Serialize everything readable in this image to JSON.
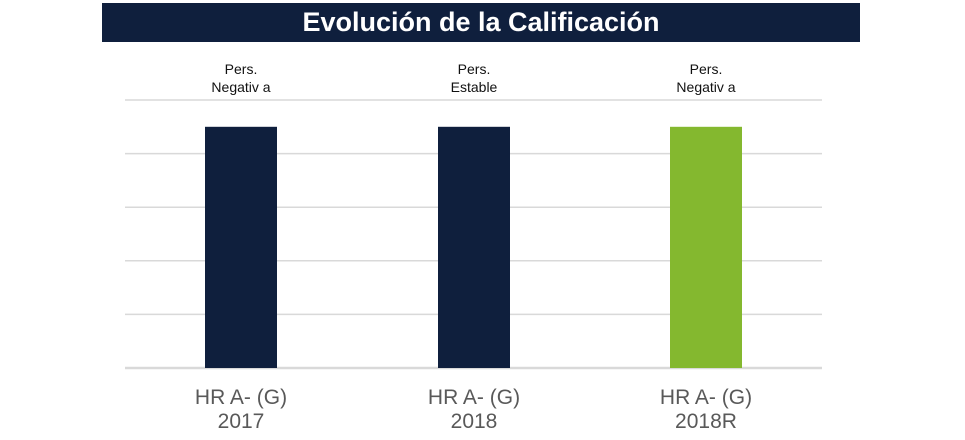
{
  "chart_data": {
    "type": "bar",
    "title": "Evolución de la Calificación",
    "categories": [
      "2017",
      "2018",
      "2018R"
    ],
    "ratings": [
      "HR A- (G)",
      "HR A- (G)",
      "HR A- (G)"
    ],
    "outlook_line1": [
      "Pers.",
      "Pers.",
      "Pers."
    ],
    "outlook_line2": [
      "Negativ a",
      "Estable",
      "Negativ a"
    ],
    "values": [
      4.5,
      4.5,
      4.5
    ],
    "colors": [
      "#0f1f3d",
      "#0f1f3d",
      "#84b82f"
    ],
    "ylim": [
      0,
      5
    ],
    "grid": true,
    "gridline_color": "#d9d9d9",
    "xlabel": "",
    "ylabel": ""
  }
}
